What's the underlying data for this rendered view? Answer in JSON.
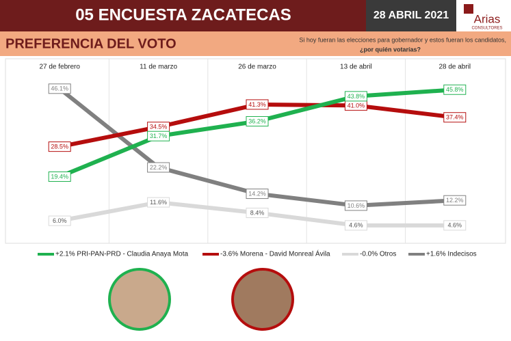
{
  "header": {
    "title": "05 ENCUESTA ZACATECAS",
    "date": "28 ABRIL 2021",
    "logo": "Arias",
    "logo_sub": "CONSULTORES"
  },
  "subheader": {
    "title": "PREFERENCIA DEL VOTO",
    "question_line1": "Si hoy fueran las elecciones para gobernador y estos fueran los candidatos,",
    "question_line2": "¿por quién votarías?"
  },
  "chart_data": {
    "type": "line",
    "categories": [
      "27 de febrero",
      "11 de marzo",
      "26 de marzo",
      "13 de abril",
      "28 de abril"
    ],
    "series": [
      {
        "name": "+2.1% PRI-PAN-PRD - Claudia Anaya Mota",
        "color": "#1fb14f",
        "values": [
          19.4,
          31.7,
          36.2,
          43.8,
          45.8
        ],
        "value_labels": [
          "19.4%",
          "31.7%",
          "36.2%",
          "43.8%",
          "45.8%"
        ]
      },
      {
        "name": "-3.6% Morena - David Monreal Ávila",
        "color": "#b50d0d",
        "values": [
          28.5,
          34.5,
          41.3,
          41.0,
          37.4
        ],
        "value_labels": [
          "28.5%",
          "34.5%",
          "41.3%",
          "41.0%",
          "37.4%"
        ]
      },
      {
        "name": "-0.0% Otros",
        "color": "#d9d9d9",
        "values": [
          6.0,
          11.6,
          8.4,
          4.6,
          4.6
        ],
        "value_labels": [
          "6.0%",
          "11.6%",
          "8.4%",
          "4.6%",
          "4.6%"
        ]
      },
      {
        "name": "+1.6% Indecisos",
        "color": "#808080",
        "values": [
          46.1,
          22.2,
          14.2,
          10.6,
          12.2
        ],
        "value_labels": [
          "46.1%",
          "22.2%",
          "14.2%",
          "10.6%",
          "12.2%"
        ]
      }
    ]
  }
}
